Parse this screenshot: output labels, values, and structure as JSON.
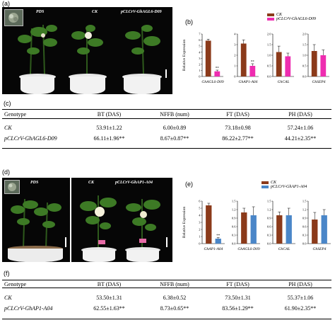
{
  "panel_a": {
    "label": "(a)",
    "photo_labels": [
      "PDS",
      "CK",
      "pCLCrV-GhAGL6-D09"
    ]
  },
  "panel_b": {
    "label": "(b)",
    "legend": [
      "CK",
      "pCLCrV-GhAGL6-D09"
    ],
    "colors": {
      "ck": "#8B3A1A",
      "treat": "#EE2DB0"
    },
    "ylabel": "Relative Expression",
    "charts": [
      {
        "gene": "GhAGL6-D09",
        "ticks": [
          "0",
          "1",
          "2",
          "3",
          "4",
          "5",
          "6",
          "7"
        ],
        "ymax": 7,
        "ck": 5.9,
        "treat": 0.85,
        "ck_err": 0.25,
        "treat_err": 0.2,
        "sig": "**"
      },
      {
        "gene": "GhAP1-A04",
        "ticks": [
          "0",
          "1",
          "2",
          "3",
          "4"
        ],
        "ymax": 4,
        "ck": 3.1,
        "treat": 1.0,
        "ck_err": 0.35,
        "treat_err": 0.2,
        "sig": "**"
      },
      {
        "gene": "GhCAL",
        "ticks": [
          "0.0",
          "0.5",
          "1.0",
          "1.5",
          "2.0"
        ],
        "ymax": 2.0,
        "ck": 1.15,
        "treat": 0.95,
        "ck_err": 0.28,
        "treat_err": 0.15,
        "sig": ""
      },
      {
        "gene": "GhSEP4",
        "ticks": [
          "0.0",
          "0.5",
          "1.0",
          "1.5",
          "2.0"
        ],
        "ymax": 2.0,
        "ck": 1.2,
        "treat": 1.0,
        "ck_err": 0.3,
        "treat_err": 0.25,
        "sig": ""
      }
    ]
  },
  "panel_c": {
    "label": "(c)",
    "headers": [
      "Genotype",
      "BT (DAS)",
      "NFFB (num)",
      "FT (DAS)",
      "PH (DAS)"
    ],
    "rows": [
      [
        "CK",
        "53.91±1.22",
        "6.00±0.89",
        "73.18±0.98",
        "57.24±1.06"
      ],
      [
        "pCLCrV-GhAGL6-D09",
        "66.11±1.96**",
        "8.67±0.87**",
        "86.22±2.77**",
        "44.21±2.35**"
      ]
    ]
  },
  "panel_d": {
    "label": "(d)",
    "photo_labels": [
      "PDS",
      "CK",
      "pCLCrV-GhAP1-A04"
    ]
  },
  "panel_e": {
    "label": "(e)",
    "legend": [
      "CK",
      "pCLCrV-GhAP1-A04"
    ],
    "colors": {
      "ck": "#8B3A1A",
      "treat": "#4A86C8"
    },
    "ylabel": "Relative Expression",
    "charts": [
      {
        "gene": "GhAP1-A04",
        "ticks": [
          "0",
          "1",
          "2",
          "3",
          "4",
          "5",
          "6"
        ],
        "ymax": 6,
        "ck": 5.4,
        "treat": 0.7,
        "ck_err": 0.3,
        "treat_err": 0.15,
        "sig": "**"
      },
      {
        "gene": "GhAGL6-D09",
        "ticks": [
          "0.0",
          "0.3",
          "0.6",
          "0.9",
          "1.2",
          "1.5"
        ],
        "ymax": 1.5,
        "ck": 1.1,
        "treat": 1.0,
        "ck_err": 0.15,
        "treat_err": 0.3,
        "sig": ""
      },
      {
        "gene": "GhCAL",
        "ticks": [
          "0.0",
          "0.3",
          "0.6",
          "0.9",
          "1.2",
          "1.5"
        ],
        "ymax": 1.5,
        "ck": 1.0,
        "treat": 1.0,
        "ck_err": 0.12,
        "treat_err": 0.25,
        "sig": ""
      },
      {
        "gene": "GhSEP4",
        "ticks": [
          "0.0",
          "0.3",
          "0.6",
          "0.9",
          "1.2",
          "1.5"
        ],
        "ymax": 1.5,
        "ck": 0.85,
        "treat": 1.0,
        "ck_err": 0.25,
        "treat_err": 0.2,
        "sig": ""
      }
    ]
  },
  "panel_f": {
    "label": "(f)",
    "headers": [
      "Genotype",
      "BT (DAS)",
      "NFFB (num)",
      "FT (DAS)",
      "PH (DAS)"
    ],
    "rows": [
      [
        "CK",
        "53.50±1.31",
        "6.38±0.52",
        "73.50±1.31",
        "55.37±1.06"
      ],
      [
        "pCLCrV-GhAP1-A04",
        "62.55±1.63**",
        "8.73±0.65**",
        "83.56±1.29**",
        "61.90±2.35**"
      ]
    ]
  },
  "chart_data": [
    {
      "type": "bar",
      "categories": [
        "GhAGL6-D09",
        "GhAP1-A04",
        "GhCAL",
        "GhSEP4"
      ],
      "series": [
        {
          "name": "CK",
          "values": [
            5.9,
            3.1,
            1.15,
            1.2
          ]
        },
        {
          "name": "pCLCrV-GhAGL6-D09",
          "values": [
            0.85,
            1.0,
            0.95,
            1.0
          ]
        }
      ],
      "ylabel": "Relative Expression"
    },
    {
      "type": "bar",
      "categories": [
        "GhAP1-A04",
        "GhAGL6-D09",
        "GhCAL",
        "GhSEP4"
      ],
      "series": [
        {
          "name": "CK",
          "values": [
            5.4,
            1.1,
            1.0,
            0.85
          ]
        },
        {
          "name": "pCLCrV-GhAP1-A04",
          "values": [
            0.7,
            1.0,
            1.0,
            1.0
          ]
        }
      ],
      "ylabel": "Relative Expression"
    }
  ]
}
